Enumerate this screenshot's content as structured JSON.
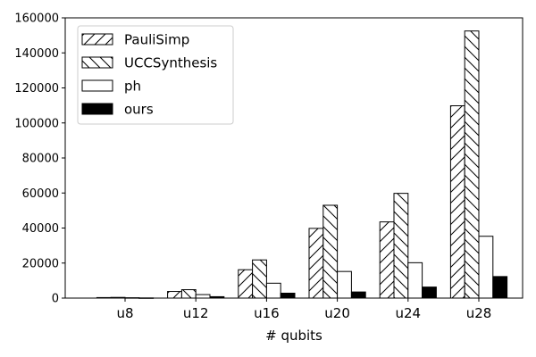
{
  "chart_data": {
    "type": "bar",
    "xlabel": "# qubits",
    "ylabel": "",
    "ylim": [
      0,
      160000
    ],
    "yticks": [
      0,
      20000,
      40000,
      60000,
      80000,
      100000,
      120000,
      140000,
      160000
    ],
    "categories": [
      "u8",
      "u12",
      "u16",
      "u20",
      "u24",
      "u28"
    ],
    "legend_position": "top-left",
    "grid": false,
    "series": [
      {
        "name": "PauliSimp",
        "pattern": "forward-diagonal-hatch",
        "color": "#ffffff",
        "values": [
          300,
          3800,
          16200,
          39800,
          43500,
          109800
        ]
      },
      {
        "name": "UCCSynthesis",
        "pattern": "back-diagonal-hatch",
        "color": "#ffffff",
        "values": [
          400,
          4800,
          21800,
          53000,
          59800,
          152500
        ]
      },
      {
        "name": "ph",
        "pattern": "none",
        "color": "#ffffff",
        "values": [
          200,
          2000,
          8500,
          15200,
          20200,
          35300
        ]
      },
      {
        "name": "ours",
        "pattern": "solid",
        "color": "#000000",
        "values": [
          100,
          800,
          2800,
          3500,
          6300,
          12300
        ]
      }
    ]
  }
}
